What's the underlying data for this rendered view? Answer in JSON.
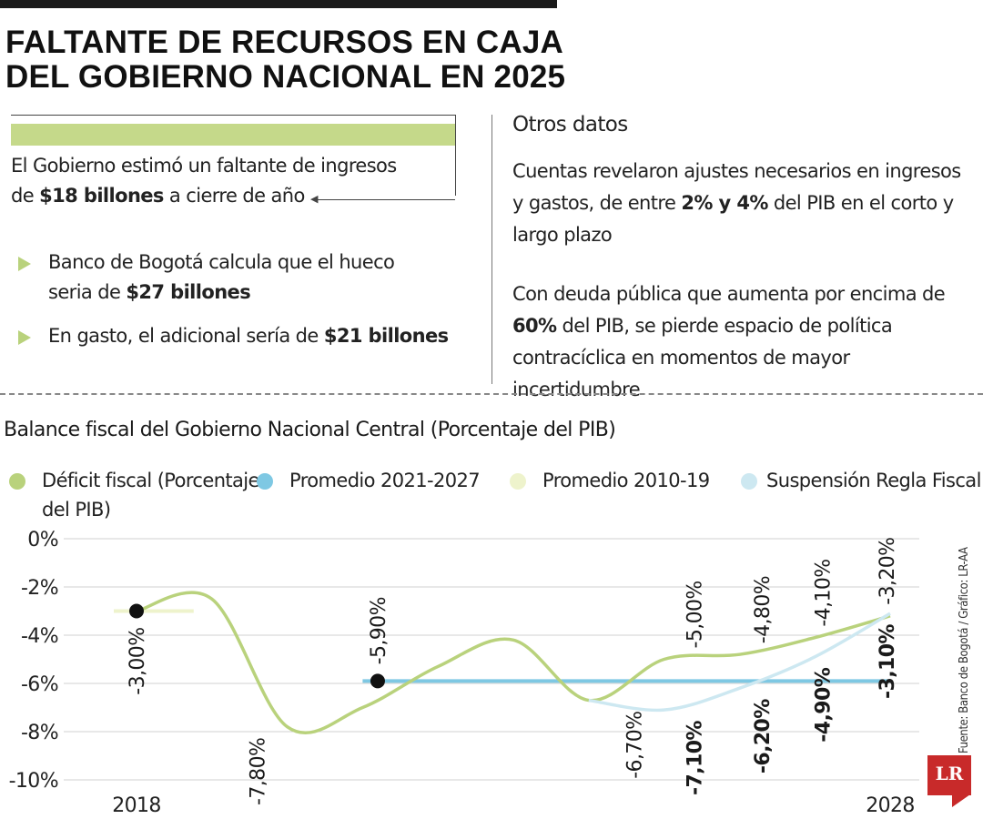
{
  "headline": {
    "line1": "FALTANTE DE RECURSOS EN CAJA",
    "line2": "DEL GOBIERNO NACIONAL EN 2025"
  },
  "callout": {
    "line1": "El Gobierno estimó un faltante de ingresos",
    "line2_pre": "de ",
    "line2_bold": "$18 billones",
    "line2_post": " a cierre de año"
  },
  "bullets": [
    {
      "line1": "Banco de Bogotá calcula que el hueco",
      "pre": "seria de ",
      "bold": "$27 billones",
      "post": ""
    },
    {
      "line1": "",
      "pre": "En gasto, el adicional sería de ",
      "bold": "$21 billones",
      "post": ""
    }
  ],
  "side": {
    "title": "Otros datos",
    "para1_a": "Cuentas revelaron ajustes necesarios en ingresos",
    "para1_b_pre": "y gastos, de entre ",
    "para1_b_bold": "2% y 4%",
    "para1_b_post": " del PIB en el corto y",
    "para1_c": "largo plazo",
    "para2_a": "Con deuda pública que aumenta por encima de",
    "para2_b_bold": "60%",
    "para2_b_post": " del PIB, se pierde espacio de política",
    "para2_c": "contracíclica en momentos de mayor incertidumbre"
  },
  "colors": {
    "deficit": "#b9d27c",
    "promedio_2021_2027": "#7ec8e3",
    "promedio_2010_19": "#eef3cc",
    "suspension": "#cde8f1",
    "marker": "#111111",
    "logo": "#c82a2a"
  },
  "chart_data": {
    "type": "line",
    "title": "Balance fiscal del Gobierno Nacional Central (Porcentaje del PIB)",
    "ylim": [
      -10,
      0
    ],
    "yticks": [
      "0%",
      "-2%",
      "-4%",
      "-6%",
      "-8%",
      "-10%"
    ],
    "xlim": [
      2018,
      2028
    ],
    "xtick_labels": [
      "2018",
      "2028"
    ],
    "legend": [
      {
        "label": "Déficit fiscal (Porcentaje del PIB)",
        "color": "#b9d27c"
      },
      {
        "label": "Promedio 2021-2027",
        "color": "#7ec8e3"
      },
      {
        "label": "Promedio 2010-19",
        "color": "#eef3cc"
      },
      {
        "label": "Suspensión Regla Fiscal",
        "color": "#cde8f1"
      }
    ],
    "series": [
      {
        "name": "Déficit fiscal (Porcentaje del PIB)",
        "x": [
          2018,
          2019,
          2020,
          2021,
          2022,
          2023,
          2024,
          2025,
          2026,
          2027,
          2028
        ],
        "values": [
          -3.0,
          -2.5,
          -7.8,
          -7.0,
          -5.3,
          -4.2,
          -6.7,
          -5.0,
          -4.8,
          -4.1,
          -3.2
        ]
      },
      {
        "name": "Suspensión Regla Fiscal",
        "x": [
          2024,
          2025,
          2026,
          2027,
          2028
        ],
        "values": [
          -6.7,
          -7.1,
          -6.2,
          -4.9,
          -3.1
        ]
      },
      {
        "name": "Promedio 2021-2027",
        "x": [
          2021,
          2028
        ],
        "values": [
          -5.9,
          -5.9
        ]
      },
      {
        "name": "Promedio 2010-19",
        "x": [
          2018,
          2019
        ],
        "values": [
          -3.0,
          -3.0
        ]
      }
    ],
    "labels": [
      {
        "text": "-3,00%",
        "x": 2018,
        "y": -3.0,
        "bold": false,
        "pos": "below",
        "marker": true
      },
      {
        "text": "-7,80%",
        "x": 2019.6,
        "y": -7.8,
        "bold": false,
        "pos": "below",
        "marker": false
      },
      {
        "text": "-5,90%",
        "x": 2021.2,
        "y": -5.9,
        "bold": false,
        "pos": "above",
        "marker": true
      },
      {
        "text": "-6,70%",
        "x": 2024.6,
        "y": -6.7,
        "bold": false,
        "pos": "below",
        "marker": false
      },
      {
        "text": "-5,00%",
        "x": 2025.4,
        "y": -5.0,
        "bold": false,
        "pos": "above",
        "marker": false
      },
      {
        "text": "-4,80%",
        "x": 2026.3,
        "y": -4.8,
        "bold": false,
        "pos": "above",
        "marker": false
      },
      {
        "text": "-4,10%",
        "x": 2027.1,
        "y": -4.1,
        "bold": false,
        "pos": "above",
        "marker": false
      },
      {
        "text": "-3,20%",
        "x": 2027.95,
        "y": -3.2,
        "bold": false,
        "pos": "above",
        "marker": false
      },
      {
        "text": "-7,10%",
        "x": 2025.4,
        "y": -7.1,
        "bold": true,
        "pos": "below",
        "marker": false
      },
      {
        "text": "-6,20%",
        "x": 2026.3,
        "y": -6.2,
        "bold": true,
        "pos": "below",
        "marker": false
      },
      {
        "text": "-4,90%",
        "x": 2027.1,
        "y": -4.9,
        "bold": true,
        "pos": "below",
        "marker": false
      },
      {
        "text": "-3,10%",
        "x": 2027.95,
        "y": -3.1,
        "bold": true,
        "pos": "below",
        "marker": false
      }
    ]
  },
  "source": "Fuente: Banco de Bogotá / Gráfico: LR-AA",
  "logo_text": "LR"
}
